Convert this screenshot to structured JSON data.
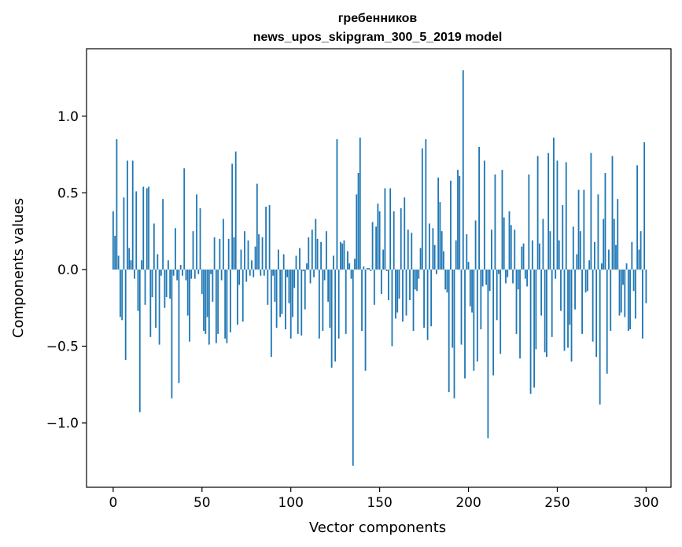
{
  "chart_data": {
    "type": "bar",
    "title": "гребенников",
    "subtitle": "news_upos_skipgram_300_5_2019 model",
    "xlabel": "Vector components",
    "ylabel": "Components values",
    "xlim": [
      -15,
      314
    ],
    "ylim": [
      -1.42,
      1.44
    ],
    "xticks": [
      0,
      50,
      100,
      150,
      200,
      250,
      300
    ],
    "yticks": [
      -1.0,
      -0.5,
      0.0,
      0.5,
      1.0
    ],
    "ytick_labels": [
      "−1.0",
      "−0.5",
      "0.0",
      "0.5",
      "1.0"
    ],
    "bar_color": "#1f77b4",
    "grid": false,
    "values": [
      0.38,
      0.22,
      0.85,
      0.09,
      -0.31,
      -0.33,
      0.47,
      -0.59,
      0.71,
      0.14,
      0.06,
      0.71,
      -0.06,
      0.51,
      -0.27,
      -0.93,
      0.06,
      0.54,
      -0.23,
      0.53,
      0.54,
      -0.44,
      -0.18,
      0.3,
      -0.38,
      0.1,
      -0.49,
      -0.04,
      0.46,
      -0.25,
      -0.18,
      0.06,
      -0.19,
      -0.84,
      -0.04,
      0.27,
      -0.07,
      -0.74,
      0.03,
      -0.04,
      0.66,
      -0.07,
      -0.3,
      -0.47,
      -0.06,
      0.25,
      -0.06,
      0.49,
      -0.03,
      0.4,
      -0.16,
      -0.4,
      -0.42,
      -0.31,
      -0.49,
      -0.03,
      -0.21,
      0.21,
      -0.48,
      -0.42,
      0.2,
      -0.07,
      0.33,
      -0.45,
      -0.48,
      0.2,
      -0.41,
      0.69,
      0.21,
      0.77,
      -0.36,
      -0.1,
      0.13,
      -0.34,
      0.25,
      -0.08,
      0.19,
      -0.04,
      0.06,
      -0.05,
      0.15,
      0.56,
      0.23,
      -0.04,
      0.21,
      -0.04,
      0.41,
      -0.23,
      0.42,
      -0.57,
      -0.04,
      -0.21,
      -0.38,
      0.13,
      -0.31,
      -0.29,
      0.1,
      -0.39,
      -0.05,
      -0.22,
      -0.45,
      -0.31,
      -0.12,
      0.09,
      -0.42,
      0.14,
      -0.43,
      -0.01,
      -0.26,
      0.04,
      0.21,
      -0.09,
      0.26,
      -0.05,
      0.33,
      0.2,
      -0.45,
      0.18,
      -0.4,
      -0.07,
      0.25,
      -0.21,
      -0.38,
      -0.64,
      0.09,
      -0.6,
      0.85,
      -0.45,
      0.18,
      0.17,
      0.19,
      -0.42,
      0.12,
      0.04,
      -0.06,
      -1.28,
      0.07,
      0.49,
      0.63,
      0.86,
      -0.4,
      0.02,
      -0.66,
      0.01,
      0.01,
      -0.01,
      0.31,
      -0.23,
      0.28,
      0.43,
      0.38,
      -0.16,
      0.13,
      0.53,
      -0.01,
      -0.2,
      0.53,
      -0.5,
      0.38,
      -0.32,
      -0.28,
      -0.19,
      0.4,
      -0.34,
      0.47,
      -0.3,
      0.26,
      -0.2,
      0.24,
      -0.4,
      -0.13,
      -0.14,
      -0.06,
      0.14,
      0.79,
      -0.38,
      0.85,
      -0.46,
      0.3,
      -0.37,
      0.27,
      0.16,
      -0.03,
      0.6,
      0.44,
      0.25,
      0.12,
      -0.13,
      -0.15,
      -0.8,
      0.58,
      -0.51,
      -0.84,
      0.19,
      0.65,
      0.61,
      -0.49,
      1.3,
      -0.71,
      0.23,
      0.05,
      -0.24,
      -0.28,
      -0.66,
      0.32,
      -0.6,
      0.8,
      -0.39,
      -0.11,
      0.71,
      -0.1,
      -1.1,
      -0.14,
      0.26,
      -0.69,
      0.62,
      -0.33,
      -0.03,
      -0.55,
      0.65,
      0.34,
      -0.09,
      -0.05,
      0.38,
      0.29,
      -0.09,
      0.26,
      -0.42,
      -0.13,
      -0.58,
      0.15,
      0.17,
      -0.06,
      -0.11,
      0.62,
      -0.81,
      0.19,
      -0.77,
      -0.52,
      0.74,
      0.17,
      -0.3,
      0.33,
      -0.54,
      -0.57,
      0.76,
      0.25,
      -0.44,
      0.86,
      -0.06,
      0.71,
      0.19,
      -0.27,
      0.42,
      -0.53,
      0.7,
      -0.51,
      -0.36,
      -0.6,
      0.28,
      -0.26,
      0.1,
      0.52,
      0.25,
      -0.42,
      0.52,
      -0.15,
      -0.14,
      0.06,
      0.76,
      -0.47,
      0.18,
      -0.57,
      0.49,
      -0.88,
      0.04,
      0.33,
      0.63,
      -0.68,
      0.13,
      -0.4,
      0.74,
      0.33,
      0.16,
      0.46,
      -0.3,
      -0.28,
      -0.1,
      -0.31,
      0.04,
      -0.4,
      -0.39,
      0.18,
      -0.14,
      -0.32,
      0.68,
      0.13,
      0.25,
      -0.45,
      0.83,
      -0.22
    ]
  }
}
